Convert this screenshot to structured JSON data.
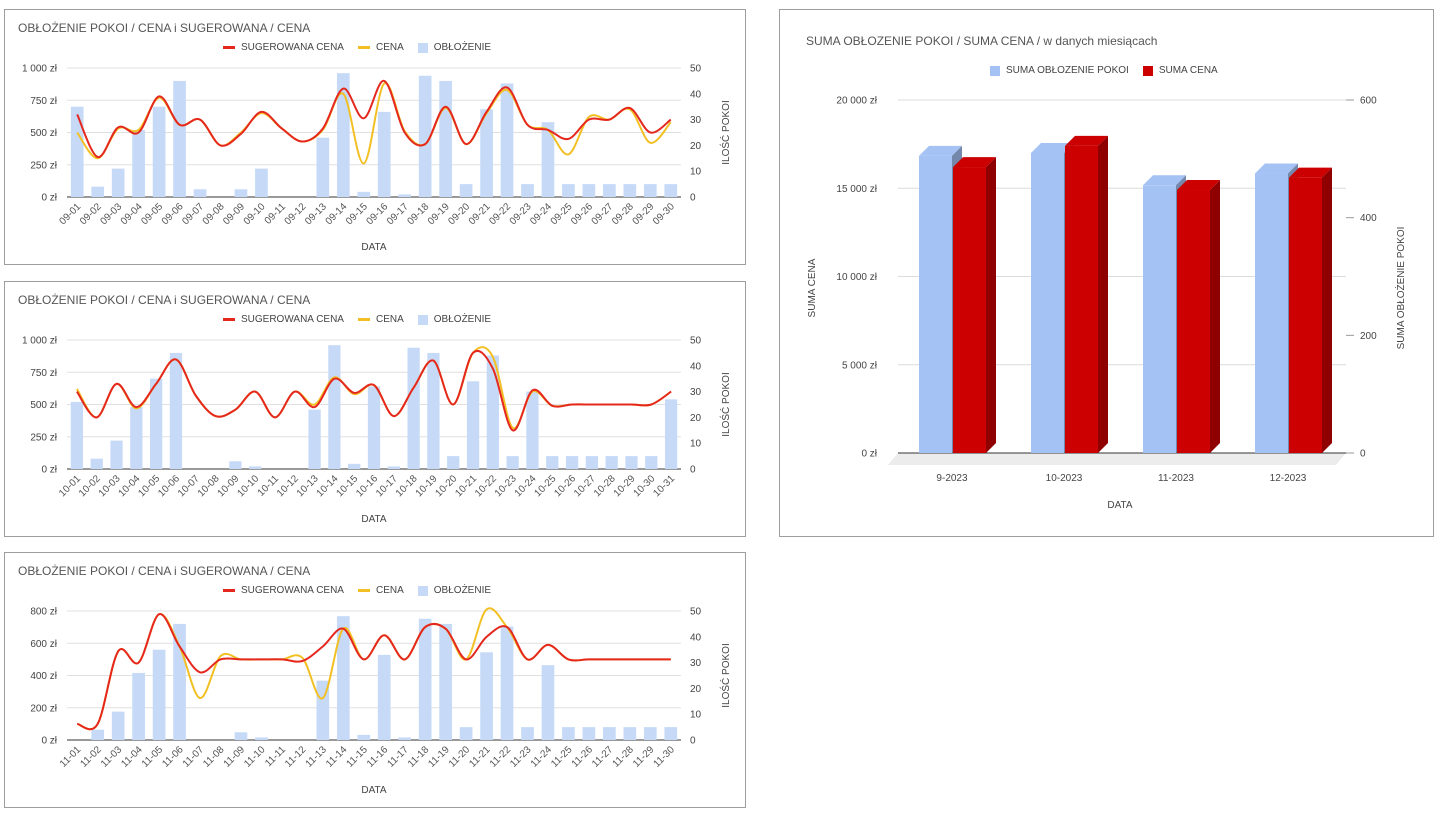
{
  "legend_line_labels": {
    "suggested": "SUGEROWANA CENA",
    "price": "CENA",
    "occupancy": "OBŁOŻENIE"
  },
  "colors": {
    "suggested": "#e5281e",
    "price": "#f2c024",
    "occupancy": "#c6daf8",
    "bar_blue": "#a4c2f4",
    "bar_red": "#cc0000"
  },
  "chart_data": [
    {
      "type": "bar",
      "title": "OBŁOŻENIE POKOI /  CENA i SUGEROWANA / CENA",
      "xlabel": "DATA",
      "ylabel_right": "ILOŚĆ POKOI",
      "ylim_left": [
        0,
        1000
      ],
      "left_ticks": [
        "0 zł",
        "250 zł",
        "500 zł",
        "750 zł",
        "1 000 zł"
      ],
      "ylim_right": [
        0,
        50
      ],
      "right_ticks": [
        "0",
        "10",
        "20",
        "30",
        "40",
        "50"
      ],
      "categories": [
        "09-01",
        "09-02",
        "09-03",
        "09-04",
        "09-05",
        "09-06",
        "09-07",
        "09-08",
        "09-09",
        "09-10",
        "09-11",
        "09-12",
        "09-13",
        "09-14",
        "09-15",
        "09-16",
        "09-17",
        "09-18",
        "09-19",
        "09-20",
        "09-21",
        "09-22",
        "09-23",
        "09-24",
        "09-25",
        "09-26",
        "09-27",
        "09-28",
        "09-29",
        "09-30"
      ],
      "series": [
        {
          "name": "OBŁOŻENIE",
          "axis": "right",
          "values": [
            35,
            4,
            11,
            26,
            35,
            45,
            3,
            0,
            3,
            11,
            0,
            0,
            23,
            48,
            2,
            33,
            1,
            47,
            45,
            5,
            34,
            44,
            5,
            29,
            5,
            5,
            5,
            5,
            5,
            5
          ]
        },
        {
          "name": "CENA",
          "axis": "left",
          "values": [
            500,
            300,
            530,
            520,
            770,
            560,
            600,
            400,
            500,
            650,
            530,
            430,
            520,
            800,
            260,
            880,
            510,
            410,
            690,
            410,
            650,
            830,
            560,
            520,
            330,
            620,
            600,
            680,
            420,
            580
          ]
        },
        {
          "name": "SUGEROWANA CENA",
          "axis": "left",
          "values": [
            640,
            310,
            540,
            500,
            780,
            560,
            600,
            400,
            490,
            660,
            530,
            430,
            530,
            840,
            610,
            900,
            500,
            410,
            700,
            410,
            660,
            850,
            560,
            520,
            450,
            600,
            600,
            690,
            500,
            600
          ]
        }
      ]
    },
    {
      "type": "bar",
      "title": "OBŁOŻENIE POKOI /  CENA i SUGEROWANA / CENA",
      "xlabel": "DATA",
      "ylabel_right": "ILOŚĆ POKOI",
      "ylim_left": [
        0,
        1000
      ],
      "left_ticks": [
        "0 zł",
        "250 zł",
        "500 zł",
        "750 zł",
        "1 000 zł"
      ],
      "ylim_right": [
        0,
        50
      ],
      "right_ticks": [
        "0",
        "10",
        "20",
        "30",
        "40",
        "50"
      ],
      "categories": [
        "10-01",
        "10-02",
        "10-03",
        "10-04",
        "10-05",
        "10-06",
        "10-07",
        "10-08",
        "10-09",
        "10-10",
        "10-11",
        "10-12",
        "10-13",
        "10-14",
        "10-15",
        "10-16",
        "10-17",
        "10-18",
        "10-19",
        "10-20",
        "10-21",
        "10-22",
        "10-23",
        "10-24",
        "10-25",
        "10-26",
        "10-27",
        "10-28",
        "10-29",
        "10-30",
        "10-31"
      ],
      "series": [
        {
          "name": "OBŁOŻENIE",
          "axis": "right",
          "values": [
            26,
            4,
            11,
            24,
            35,
            45,
            0,
            0,
            3,
            1,
            0,
            0,
            23,
            48,
            2,
            32,
            1,
            47,
            45,
            5,
            34,
            44,
            5,
            30,
            5,
            5,
            5,
            5,
            5,
            5,
            27
          ]
        },
        {
          "name": "CENA",
          "axis": "left",
          "values": [
            620,
            400,
            660,
            470,
            660,
            850,
            570,
            410,
            460,
            600,
            400,
            600,
            500,
            710,
            580,
            650,
            410,
            630,
            840,
            500,
            900,
            870,
            320,
            600,
            490,
            500,
            500,
            500,
            500,
            500,
            600
          ]
        },
        {
          "name": "SUGEROWANA CENA",
          "axis": "left",
          "values": [
            600,
            400,
            660,
            480,
            660,
            850,
            570,
            410,
            460,
            600,
            400,
            600,
            480,
            700,
            590,
            650,
            410,
            630,
            840,
            500,
            900,
            780,
            300,
            610,
            490,
            500,
            500,
            500,
            500,
            500,
            600
          ]
        }
      ]
    },
    {
      "type": "bar",
      "title": "OBŁOŻENIE POKOI /  CENA i SUGEROWANA / CENA",
      "xlabel": "DATA",
      "ylabel_right": "ILOŚĆ POKOI",
      "ylim_left": [
        0,
        800
      ],
      "left_ticks": [
        "0 zł",
        "200 zł",
        "400 zł",
        "600 zł",
        "800 zł"
      ],
      "ylim_right": [
        0,
        50
      ],
      "right_ticks": [
        "0",
        "10",
        "20",
        "30",
        "40",
        "50"
      ],
      "categories": [
        "11-01",
        "11-02",
        "11-03",
        "11-04",
        "11-05",
        "11-06",
        "11-07",
        "11-08",
        "11-09",
        "11-10",
        "11-11",
        "11-12",
        "11-13",
        "11-14",
        "11-15",
        "11-16",
        "11-17",
        "11-18",
        "11-19",
        "11-20",
        "11-21",
        "11-22",
        "11-23",
        "11-24",
        "11-25",
        "11-26",
        "11-27",
        "11-28",
        "11-29",
        "11-30"
      ],
      "series": [
        {
          "name": "OBŁOŻENIE",
          "axis": "right",
          "values": [
            0,
            4,
            11,
            26,
            35,
            45,
            0,
            0,
            3,
            1,
            0,
            0,
            23,
            48,
            2,
            33,
            1,
            47,
            45,
            5,
            34,
            44,
            5,
            29,
            5,
            5,
            5,
            5,
            5,
            5
          ]
        },
        {
          "name": "CENA",
          "axis": "left",
          "values": [
            100,
            100,
            550,
            480,
            780,
            580,
            260,
            520,
            500,
            500,
            500,
            510,
            260,
            690,
            500,
            650,
            500,
            700,
            690,
            500,
            810,
            700,
            500,
            590,
            500,
            500,
            500,
            500,
            500,
            500
          ]
        },
        {
          "name": "SUGEROWANA CENA",
          "axis": "left",
          "values": [
            100,
            100,
            550,
            480,
            780,
            580,
            420,
            500,
            500,
            500,
            500,
            490,
            580,
            690,
            500,
            650,
            500,
            700,
            690,
            500,
            640,
            700,
            500,
            590,
            500,
            500,
            500,
            500,
            500,
            500
          ]
        }
      ]
    },
    {
      "type": "bar",
      "title": "SUMA OBŁOZENIE POKOI / SUMA CENA / w danych miesiącach",
      "xlabel": "DATA",
      "ylabel_left": "SUMA CENA",
      "ylabel_right": "SUMA OBŁOŻENIE POKOI",
      "ylim_left": [
        0,
        20000
      ],
      "left_ticks": [
        "0 zł",
        "5 000 zł",
        "10 000 zł",
        "15 000 zł",
        "20 000 zł"
      ],
      "ylim_right": [
        0,
        600
      ],
      "right_ticks": [
        "0",
        "200",
        "400",
        "600"
      ],
      "categories": [
        "9-2023",
        "10-2023",
        "11-2023",
        "12-2023"
      ],
      "series": [
        {
          "name": "SUMA OBŁOZENIE POKOI",
          "axis": "right",
          "values": [
            505,
            510,
            455,
            475
          ]
        },
        {
          "name": "SUMA CENA",
          "axis": "left",
          "values": [
            16200,
            17400,
            14900,
            15600
          ]
        }
      ]
    }
  ]
}
